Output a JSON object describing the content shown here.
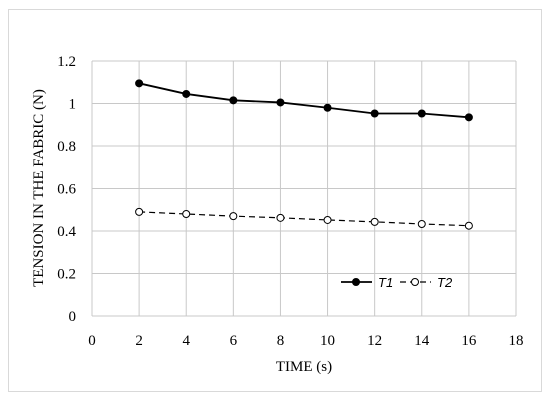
{
  "chart_data": {
    "type": "line",
    "title": "",
    "xlabel": "TIME (s)",
    "ylabel": "TENSION IN THE FABRIC (N)",
    "xlim": [
      0,
      18
    ],
    "ylim": [
      0,
      1.2
    ],
    "xticks": [
      "0",
      "2",
      "4",
      "6",
      "8",
      "10",
      "12",
      "14",
      "16",
      "18"
    ],
    "yticks": [
      "0",
      "0.2",
      "0.4",
      "0.6",
      "0.8",
      "1",
      "1.2"
    ],
    "grid": true,
    "legend_position": "lower-right-inside",
    "series": [
      {
        "name": "T1",
        "x": [
          2,
          4,
          6,
          8,
          10,
          12,
          14,
          16
        ],
        "y": [
          1.095,
          1.045,
          1.015,
          1.005,
          0.98,
          0.953,
          0.953,
          0.935
        ],
        "color": "#000000",
        "line_style": "solid",
        "marker": "filled-circle"
      },
      {
        "name": "T2",
        "x": [
          2,
          4,
          6,
          8,
          10,
          12,
          14,
          16
        ],
        "y": [
          0.49,
          0.48,
          0.47,
          0.462,
          0.452,
          0.443,
          0.433,
          0.425
        ],
        "color": "#000000",
        "line_style": "dashed",
        "marker": "open-circle"
      }
    ]
  }
}
